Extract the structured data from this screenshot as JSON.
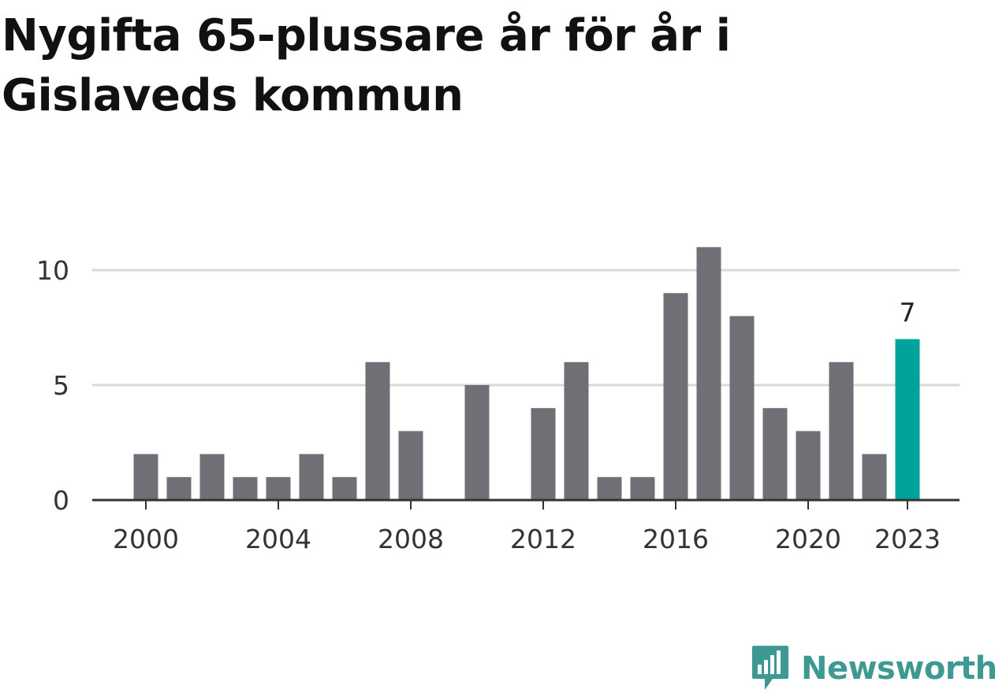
{
  "title": "Nygifta 65-plussare år för år i Gislaveds kommun",
  "colors": {
    "bar": "#706f75",
    "highlight": "#00a399",
    "grid": "#d9d9d9",
    "axis": "#333333",
    "brand": "#3d9991"
  },
  "chart_data": {
    "type": "bar",
    "categories": [
      "1999",
      "2000",
      "2001",
      "2002",
      "2003",
      "2004",
      "2005",
      "2006",
      "2007",
      "2008",
      "2009",
      "2010",
      "2011",
      "2012",
      "2013",
      "2014",
      "2015",
      "2016",
      "2017",
      "2018",
      "2019",
      "2020",
      "2021",
      "2022",
      "2023"
    ],
    "values": [
      0,
      2,
      1,
      2,
      1,
      1,
      2,
      1,
      6,
      3,
      0,
      5,
      0,
      4,
      6,
      1,
      1,
      9,
      11,
      8,
      4,
      3,
      6,
      2,
      7
    ],
    "highlight_index": 24,
    "highlight_label": "7",
    "title": "Nygifta 65-plussare år för år i Gislaveds kommun",
    "xlabel": "",
    "ylabel": "",
    "ylim": [
      0,
      12
    ],
    "y_ticks": [
      0,
      5,
      10
    ],
    "y_tick_labels": [
      "0",
      "5",
      "10"
    ],
    "x_tick_labels": [
      "2000",
      "2004",
      "2008",
      "2012",
      "2016",
      "2020",
      "2023"
    ],
    "grid": true,
    "legend": "none"
  },
  "brand": {
    "name": "Newsworthy",
    "icon": "newsworthy-logo-icon"
  }
}
